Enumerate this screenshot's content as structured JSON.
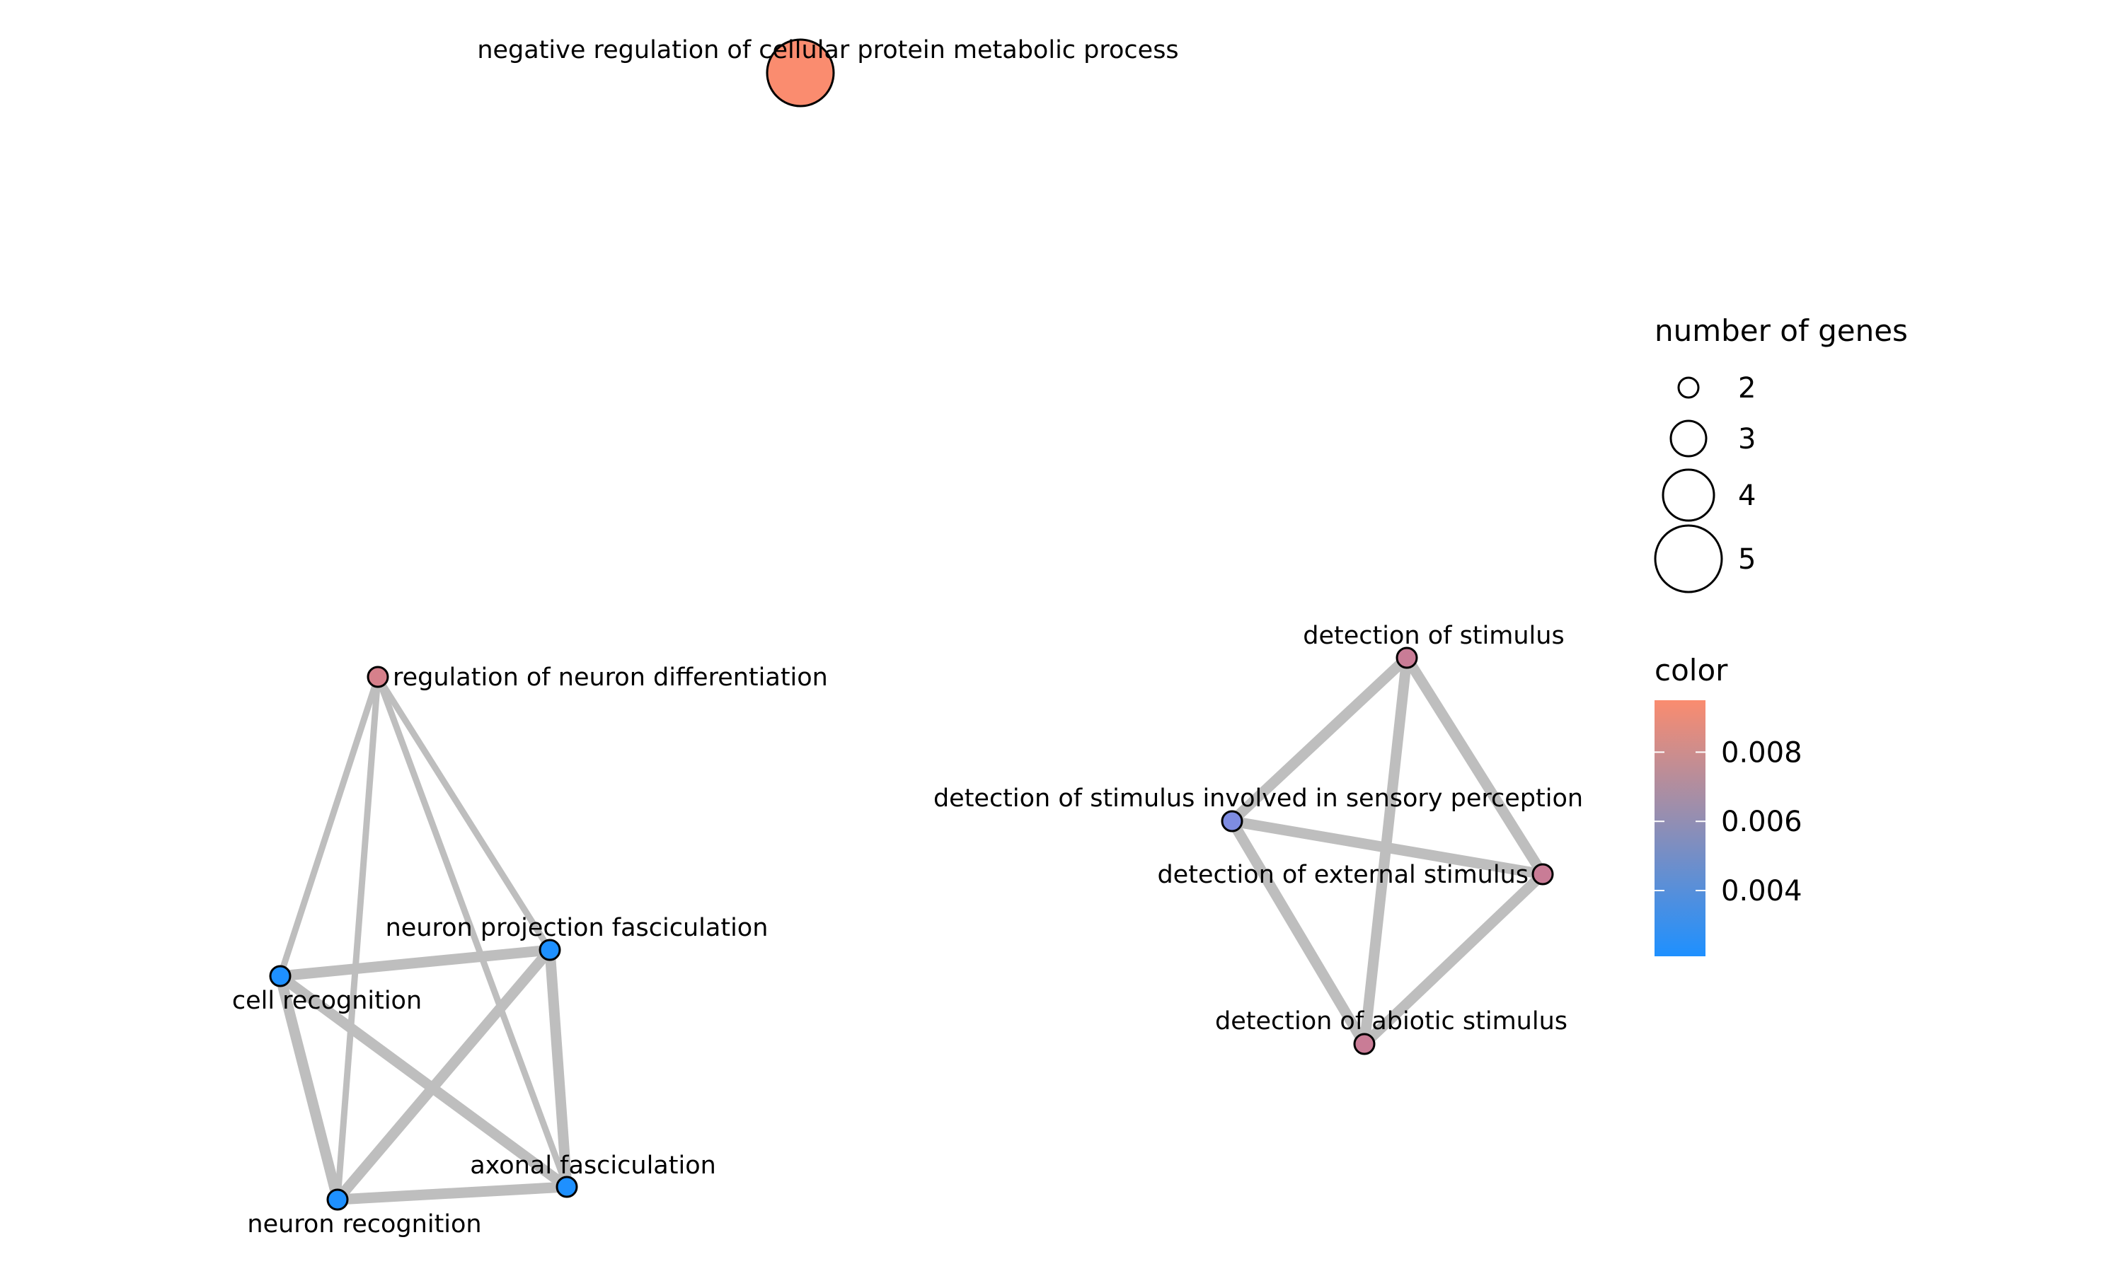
{
  "network": {
    "nodes": [
      {
        "id": "neg",
        "label": "negative regulation of cellular protein metabolic process",
        "genes": 5,
        "color_value": 0.0095,
        "fill": "#fa8c6f"
      },
      {
        "id": "reg",
        "label": "regulation of neuron differentiation",
        "genes": 2,
        "color_value": 0.0077,
        "fill": "#d6808b"
      },
      {
        "id": "cell",
        "label": "cell recognition",
        "genes": 2,
        "color_value": 0.0021,
        "fill": "#1e90ff"
      },
      {
        "id": "npf",
        "label": "neuron projection fasciculation",
        "genes": 2,
        "color_value": 0.0021,
        "fill": "#1e90ff"
      },
      {
        "id": "nr",
        "label": "neuron recognition",
        "genes": 2,
        "color_value": 0.0021,
        "fill": "#1e90ff"
      },
      {
        "id": "ax",
        "label": "axonal fasciculation",
        "genes": 2,
        "color_value": 0.0021,
        "fill": "#1e90ff"
      },
      {
        "id": "ds",
        "label": "detection of stimulus",
        "genes": 2,
        "color_value": 0.0068,
        "fill": "#c97c96"
      },
      {
        "id": "dsp",
        "label": "detection of stimulus involved in sensory perception",
        "genes": 2,
        "color_value": 0.004,
        "fill": "#7e8ce2"
      },
      {
        "id": "des",
        "label": "detection of external stimulus",
        "genes": 2,
        "color_value": 0.0068,
        "fill": "#c97c96"
      },
      {
        "id": "das",
        "label": "detection of abiotic stimulus",
        "genes": 2,
        "color_value": 0.0068,
        "fill": "#c97c96"
      }
    ],
    "edges": [
      {
        "source": "reg",
        "target": "cell",
        "weight": 1
      },
      {
        "source": "reg",
        "target": "npf",
        "weight": 1
      },
      {
        "source": "reg",
        "target": "nr",
        "weight": 1
      },
      {
        "source": "reg",
        "target": "ax",
        "weight": 1
      },
      {
        "source": "cell",
        "target": "npf",
        "weight": 2
      },
      {
        "source": "cell",
        "target": "nr",
        "weight": 2
      },
      {
        "source": "cell",
        "target": "ax",
        "weight": 2
      },
      {
        "source": "npf",
        "target": "nr",
        "weight": 2
      },
      {
        "source": "npf",
        "target": "ax",
        "weight": 2
      },
      {
        "source": "nr",
        "target": "ax",
        "weight": 2
      },
      {
        "source": "ds",
        "target": "dsp",
        "weight": 2
      },
      {
        "source": "ds",
        "target": "des",
        "weight": 2
      },
      {
        "source": "ds",
        "target": "das",
        "weight": 2
      },
      {
        "source": "dsp",
        "target": "des",
        "weight": 2
      },
      {
        "source": "dsp",
        "target": "das",
        "weight": 2
      },
      {
        "source": "des",
        "target": "das",
        "weight": 2
      }
    ]
  },
  "legend": {
    "size_title": "number of genes",
    "size_items": [
      {
        "label": "2",
        "genes": 2
      },
      {
        "label": "3",
        "genes": 3
      },
      {
        "label": "4",
        "genes": 4
      },
      {
        "label": "5",
        "genes": 5
      }
    ],
    "color_title": "color",
    "color_ticks": [
      {
        "label": "0.008",
        "value": 0.008
      },
      {
        "label": "0.006",
        "value": 0.006
      },
      {
        "label": "0.004",
        "value": 0.004
      }
    ],
    "color_range": [
      0.0021,
      0.0095
    ],
    "color_low": "#1e90ff",
    "color_high": "#fa8c6f"
  }
}
